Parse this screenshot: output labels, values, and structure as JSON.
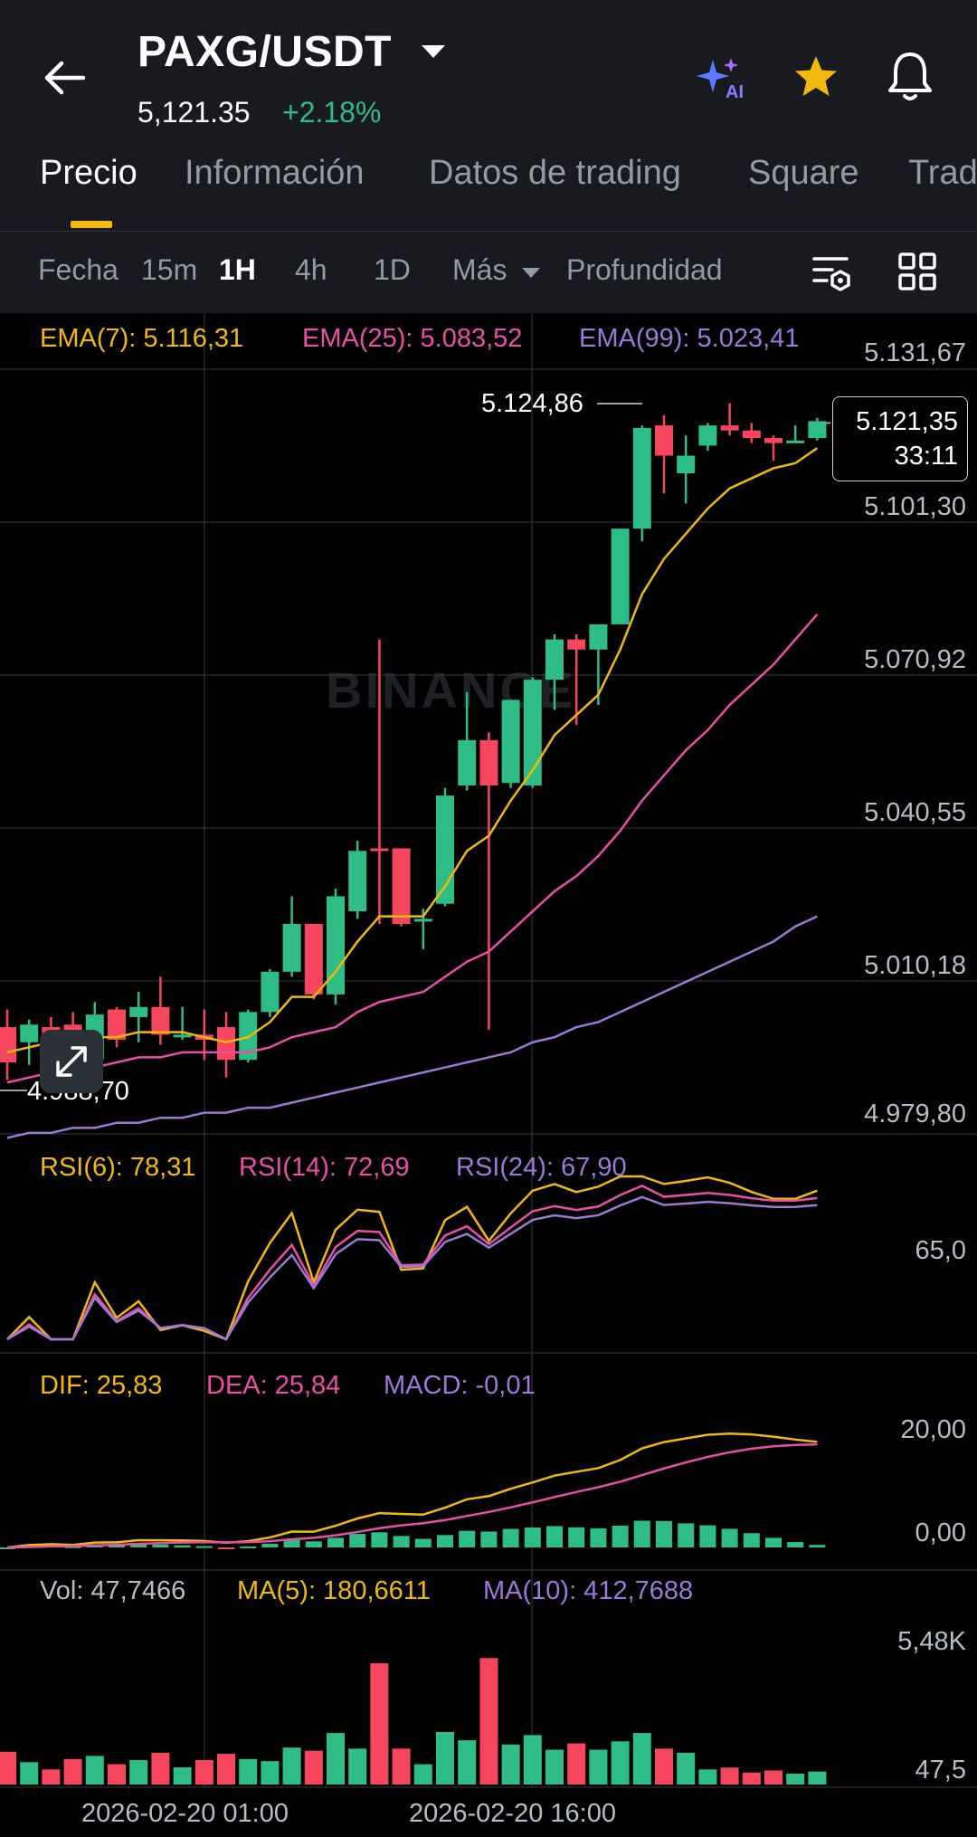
{
  "header": {
    "pair": "PAXG/USDT",
    "price": "5,121.35",
    "change": "+2.18%",
    "icons": [
      "back-arrow-icon",
      "ai-sparkle-icon",
      "star-icon",
      "bell-icon"
    ]
  },
  "tabs": [
    "Precio",
    "Información",
    "Datos de trading",
    "Square",
    "Trad"
  ],
  "timeframes": {
    "fecha": "Fecha",
    "m15": "15m",
    "h1": "1H",
    "h4": "4h",
    "d1": "1D",
    "mas": "Más",
    "profundidad": "Profundidad"
  },
  "indicators": {
    "ema7": "EMA(7): 5.116,31",
    "ema25": "EMA(25): 5.083,52",
    "ema99": "EMA(99): 5.023,41",
    "rsi6": "RSI(6): 78,31",
    "rsi14": "RSI(14): 72,69",
    "rsi24": "RSI(24): 67,90",
    "dif": "DIF: 25,83",
    "dea": "DEA: 25,84",
    "macd": "MACD: -0,01",
    "vol": "Vol: 47,7466",
    "ma5": "MA(5): 180,6611",
    "ma10": "MA(10): 412,7688"
  },
  "price_axis": [
    "5.131,67",
    "5.101,30",
    "5.070,92",
    "5.040,55",
    "5.010,18",
    "4.979,80"
  ],
  "rsi_axis": [
    "65,0"
  ],
  "macd_axis": [
    "20,00",
    "0,00"
  ],
  "vol_axis": [
    "5,48K",
    "47,5"
  ],
  "current_price": {
    "value": "5.121,35",
    "countdown": "33:11"
  },
  "high_label": "5.124,86",
  "low_label": "4.988,70",
  "watermark": "BINANCE",
  "x_dates": [
    "2026-02-20 01:00",
    "2026-02-20 16:00"
  ],
  "colors": {
    "up": "#2ebd85",
    "down": "#f6465d",
    "ema7": "#f0b90b",
    "ema25": "#e84fa7",
    "ema99": "#9a7ad6",
    "accent": "#f0b90b"
  },
  "chart_data": {
    "type": "candlestick",
    "candles": [
      {
        "o": 5001.0,
        "h": 5004.5,
        "l": 4990.5,
        "c": 4994.0
      },
      {
        "o": 4998.0,
        "h": 5002.5,
        "l": 4993.5,
        "c": 5001.5
      },
      {
        "o": 5001.0,
        "h": 5003.0,
        "l": 4997.5,
        "c": 4998.5
      },
      {
        "o": 5001.5,
        "h": 5004.0,
        "l": 4993.5,
        "c": 4994.0
      },
      {
        "o": 4994.5,
        "h": 5006.0,
        "l": 4994.0,
        "c": 5003.5
      },
      {
        "o": 5004.5,
        "h": 5005.0,
        "l": 4997.0,
        "c": 4998.5
      },
      {
        "o": 5003.0,
        "h": 5008.0,
        "l": 4998.0,
        "c": 5005.0
      },
      {
        "o": 5005.0,
        "h": 5011.0,
        "l": 4997.5,
        "c": 4999.5
      },
      {
        "o": 4999.0,
        "h": 5005.0,
        "l": 4998.5,
        "c": 4999.5
      },
      {
        "o": 4999.5,
        "h": 5004.5,
        "l": 4994.5,
        "c": 4998.5
      },
      {
        "o": 5001.0,
        "h": 5004.0,
        "l": 4991.0,
        "c": 4994.5
      },
      {
        "o": 4994.5,
        "h": 5004.5,
        "l": 4994.0,
        "c": 5004.0
      },
      {
        "o": 5004.0,
        "h": 5012.5,
        "l": 5003.0,
        "c": 5012.0
      },
      {
        "o": 5012.0,
        "h": 5027.0,
        "l": 5011.0,
        "c": 5021.5
      },
      {
        "o": 5021.5,
        "h": 5021.0,
        "l": 5006.5,
        "c": 5007.5
      },
      {
        "o": 5007.5,
        "h": 5028.5,
        "l": 5005.5,
        "c": 5027.0
      },
      {
        "o": 5024.0,
        "h": 5038.0,
        "l": 5022.5,
        "c": 5036.0
      },
      {
        "o": 5036.5,
        "h": 5078.0,
        "l": 5021.5,
        "c": 5036.0
      },
      {
        "o": 5036.5,
        "h": 5036.5,
        "l": 5021.0,
        "c": 5021.5
      },
      {
        "o": 5022.0,
        "h": 5024.5,
        "l": 5016.5,
        "c": 5022.5
      },
      {
        "o": 5025.5,
        "h": 5048.5,
        "l": 5025.0,
        "c": 5047.0
      },
      {
        "o": 5049.0,
        "h": 5067.5,
        "l": 5048.0,
        "c": 5058.0
      },
      {
        "o": 5058.0,
        "h": 5059.5,
        "l": 5000.5,
        "c": 5049.0
      },
      {
        "o": 5049.5,
        "h": 5066.0,
        "l": 5048.5,
        "c": 5066.0
      },
      {
        "o": 5049.0,
        "h": 5070.5,
        "l": 5048.5,
        "c": 5070.0
      },
      {
        "o": 5070.0,
        "h": 5079.0,
        "l": 5064.0,
        "c": 5078.0
      },
      {
        "o": 5078.0,
        "h": 5079.0,
        "l": 5061.0,
        "c": 5076.0
      },
      {
        "o": 5076.0,
        "h": 5080.0,
        "l": 5065.0,
        "c": 5081.0
      },
      {
        "o": 5081.0,
        "h": 5100.0,
        "l": 5081.0,
        "c": 5100.0
      },
      {
        "o": 5100.0,
        "h": 5120.5,
        "l": 5097.5,
        "c": 5120.0
      },
      {
        "o": 5120.5,
        "h": 5122.5,
        "l": 5107.0,
        "c": 5114.5
      },
      {
        "o": 5111.0,
        "h": 5118.5,
        "l": 5105.0,
        "c": 5114.5
      },
      {
        "o": 5116.5,
        "h": 5121.0,
        "l": 5115.5,
        "c": 5120.5
      },
      {
        "o": 5120.5,
        "h": 5124.9,
        "l": 5118.5,
        "c": 5119.5
      },
      {
        "o": 5119.5,
        "h": 5121.0,
        "l": 5117.0,
        "c": 5118.0
      },
      {
        "o": 5118.0,
        "h": 5118.5,
        "l": 5113.5,
        "c": 5117.0
      },
      {
        "o": 5117.5,
        "h": 5120.5,
        "l": 5117.0,
        "c": 5117.5
      },
      {
        "o": 5118.0,
        "h": 5122.0,
        "l": 5117.5,
        "c": 5121.35
      }
    ],
    "ema7": [
      4996,
      4997,
      4998,
      4998,
      4999,
      4999,
      5000,
      5000,
      5000,
      4999,
      4998,
      4999,
      5002,
      5007,
      5007,
      5012,
      5018,
      5023,
      5023,
      5023,
      5029,
      5036,
      5039,
      5046,
      5052,
      5059,
      5063,
      5067,
      5076,
      5087,
      5094,
      5099,
      5104,
      5108,
      5110,
      5112,
      5113,
      5116
    ],
    "ema25": [
      4990,
      4991,
      4992,
      4993,
      4993,
      4994,
      4995,
      4995,
      4996,
      4996,
      4996,
      4996,
      4997,
      4999,
      5000,
      5001,
      5004,
      5006,
      5007,
      5008,
      5011,
      5014,
      5016,
      5020,
      5024,
      5028,
      5031,
      5035,
      5040,
      5046,
      5051,
      5056,
      5060,
      5065,
      5069,
      5073,
      5078,
      5083
    ],
    "ema99": [
      4979,
      4980,
      4980,
      4981,
      4981,
      4982,
      4982,
      4983,
      4983,
      4984,
      4984,
      4985,
      4985,
      4986,
      4987,
      4988,
      4989,
      4990,
      4991,
      4992,
      4993,
      4994,
      4995,
      4996,
      4998,
      4999,
      5001,
      5002,
      5004,
      5006,
      5008,
      5010,
      5012,
      5014,
      5016,
      5018,
      5021,
      5023
    ]
  }
}
